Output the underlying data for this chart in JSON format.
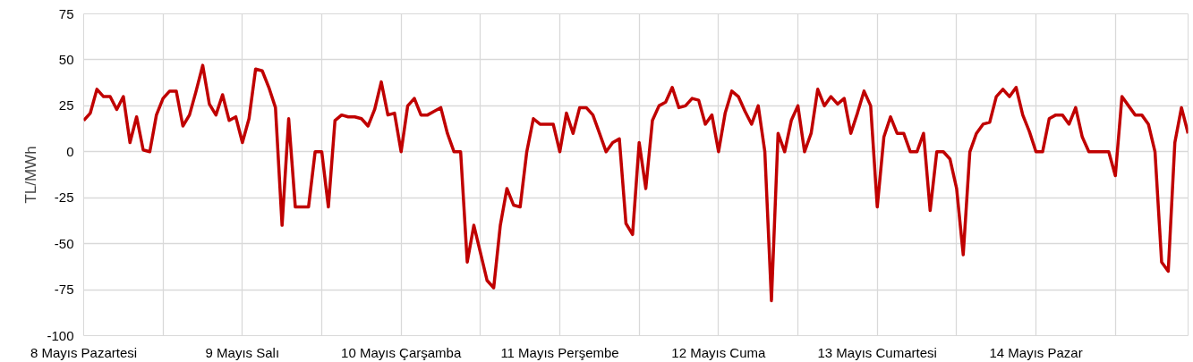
{
  "chart_data": {
    "type": "line",
    "ylabel": "TL/MWh",
    "categories": [
      "8 Mayıs Pazartesi",
      null,
      null,
      null,
      null,
      null,
      null,
      null,
      null,
      null,
      null,
      null,
      null,
      null,
      null,
      null,
      null,
      null,
      null,
      null,
      null,
      null,
      null,
      null,
      "9 Mayıs Salı",
      null,
      null,
      null,
      null,
      null,
      null,
      null,
      null,
      null,
      null,
      null,
      null,
      null,
      null,
      null,
      null,
      null,
      null,
      null,
      null,
      null,
      null,
      null,
      "10 Mayıs Çarşamba",
      null,
      null,
      null,
      null,
      null,
      null,
      null,
      null,
      null,
      null,
      null,
      null,
      null,
      null,
      null,
      null,
      null,
      null,
      null,
      null,
      null,
      null,
      null,
      "11 Mayıs Perşembe",
      null,
      null,
      null,
      null,
      null,
      null,
      null,
      null,
      null,
      null,
      null,
      null,
      null,
      null,
      null,
      null,
      null,
      null,
      null,
      null,
      null,
      null,
      null,
      "12 Mayıs Cuma",
      null,
      null,
      null,
      null,
      null,
      null,
      null,
      null,
      null,
      null,
      null,
      null,
      null,
      null,
      null,
      null,
      null,
      null,
      null,
      null,
      null,
      null,
      null,
      "13 Mayıs Cumartesi",
      null,
      null,
      null,
      null,
      null,
      null,
      null,
      null,
      null,
      null,
      null,
      null,
      null,
      null,
      null,
      null,
      null,
      null,
      null,
      null,
      null,
      null,
      null,
      "14 Mayıs Pazar",
      null,
      null,
      null,
      null,
      null,
      null,
      null,
      null,
      null,
      null,
      null,
      null,
      null,
      null,
      null,
      null,
      null,
      null,
      null,
      null,
      null,
      null,
      null
    ],
    "series": [
      {
        "color": "#c00000",
        "values": [
          17,
          21,
          34,
          30,
          30,
          23,
          30,
          5,
          19,
          1,
          0,
          20,
          29,
          33,
          33,
          14,
          20,
          33,
          47,
          26,
          20,
          31,
          17,
          19,
          5,
          18,
          45,
          44,
          35,
          24,
          -40,
          18,
          -30,
          -30,
          -30,
          0,
          0,
          -30,
          17,
          20,
          19,
          19,
          18,
          14,
          23,
          38,
          20,
          21,
          0,
          25,
          29,
          20,
          20,
          22,
          24,
          10,
          0,
          0,
          -60,
          -40,
          -55,
          -70,
          -74,
          -40,
          -20,
          -29,
          -30,
          0,
          18,
          15,
          15,
          15,
          0,
          21,
          10,
          24,
          24,
          20,
          10,
          0,
          5,
          7,
          -39,
          -45,
          5,
          -20,
          17,
          25,
          27,
          35,
          24,
          25,
          29,
          28,
          15,
          20,
          0,
          21,
          33,
          30,
          22,
          15,
          25,
          0,
          -81,
          10,
          0,
          17,
          25,
          0,
          10,
          34,
          25,
          30,
          26,
          29,
          10,
          21,
          33,
          25,
          -30,
          8,
          19,
          10,
          10,
          0,
          0,
          10,
          -32,
          0,
          0,
          -4,
          -20,
          -56,
          0,
          10,
          15,
          16,
          30,
          34,
          30,
          35,
          20,
          11,
          0,
          0,
          18,
          20,
          20,
          15,
          24,
          8,
          0,
          0,
          0,
          0,
          -13,
          30,
          25,
          20,
          20,
          15,
          0,
          -60,
          -65,
          5,
          24,
          10
        ]
      }
    ],
    "ylim": [
      -100,
      75
    ],
    "yticks": [
      -100,
      -75,
      -50,
      -25,
      0,
      25,
      50,
      75
    ],
    "grid": true,
    "marker": "none",
    "line_style": "solid"
  }
}
